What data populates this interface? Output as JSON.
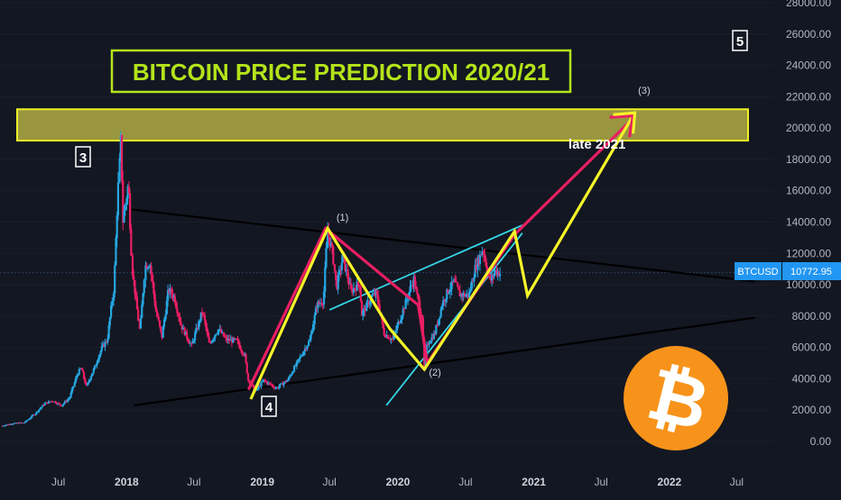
{
  "colors": {
    "background": "#131722",
    "up_candle": "#26a6e0",
    "down_candle": "#e91e63",
    "resistance_zone_fill": "#9a9640",
    "resistance_zone_border": "#eef026",
    "title_border": "#b4e41a",
    "wave_yellow": "#f5f528",
    "wave_pink": "#e91e63",
    "channel_cyan": "#35d8ea",
    "trendline_black": "#000000",
    "price_tag": "#2196f3",
    "bitcoin_orange": "#f7931a",
    "axis_text": "#b2b5be"
  },
  "annotations": {
    "title": "BITCOIN PRICE PREDICTION 2020/21",
    "label_late_2021": "late 2021",
    "wave_label_1": "(1)",
    "wave_label_2": "(2)",
    "wave_label_3": "(3)",
    "box_label_3": "3",
    "box_label_4": "4",
    "box_label_5": "5",
    "bitcoin_logo_icon": "bitcoin-logo-icon"
  },
  "price_tag": {
    "symbol": "BTCUSD",
    "price": "10772.95"
  },
  "chart_data": {
    "type": "candlestick",
    "title": "BITCOIN PRICE PREDICTION 2020/21",
    "symbol": "BTCUSD",
    "last_price": 10772.95,
    "ylim": [
      0,
      28000
    ],
    "y_ticks": [
      "0.00",
      "2000.00",
      "4000.00",
      "6000.00",
      "8000.00",
      "10000.00",
      "12000.00",
      "14000.00",
      "16000.00",
      "18000.00",
      "20000.00",
      "22000.00",
      "24000.00",
      "26000.00",
      "28000.00"
    ],
    "x_ticks": [
      "Jul",
      "2018",
      "Jul",
      "2019",
      "Jul",
      "2020",
      "Jul",
      "2021",
      "Jul",
      "2022",
      "Jul"
    ],
    "x_tick_dates": [
      "2017-07-01",
      "2018-01-01",
      "2018-07-01",
      "2019-01-01",
      "2019-07-01",
      "2020-01-01",
      "2020-07-01",
      "2021-01-01",
      "2021-07-01",
      "2022-01-01",
      "2022-07-01"
    ],
    "xlim": [
      "2017-01-25",
      "2022-10-10"
    ],
    "price_path": [
      [
        "2017-02-01",
        1000
      ],
      [
        "2017-03-01",
        1150
      ],
      [
        "2017-04-01",
        1200
      ],
      [
        "2017-05-01",
        1800
      ],
      [
        "2017-05-25",
        2400
      ],
      [
        "2017-06-15",
        2600
      ],
      [
        "2017-07-10",
        2300
      ],
      [
        "2017-08-01",
        2800
      ],
      [
        "2017-08-20",
        4200
      ],
      [
        "2017-09-01",
        4700
      ],
      [
        "2017-09-15",
        3500
      ],
      [
        "2017-10-10",
        4900
      ],
      [
        "2017-10-25",
        5900
      ],
      [
        "2017-11-10",
        6500
      ],
      [
        "2017-11-28",
        9800
      ],
      [
        "2017-12-08",
        15500
      ],
      [
        "2017-12-17",
        19500
      ],
      [
        "2017-12-22",
        14000
      ],
      [
        "2018-01-06",
        16500
      ],
      [
        "2018-01-16",
        11000
      ],
      [
        "2018-02-06",
        7000
      ],
      [
        "2018-02-20",
        11200
      ],
      [
        "2018-03-05",
        11400
      ],
      [
        "2018-03-20",
        8500
      ],
      [
        "2018-04-06",
        6600
      ],
      [
        "2018-04-24",
        9700
      ],
      [
        "2018-05-10",
        9200
      ],
      [
        "2018-05-28",
        7400
      ],
      [
        "2018-06-25",
        6100
      ],
      [
        "2018-07-24",
        8300
      ],
      [
        "2018-08-12",
        6200
      ],
      [
        "2018-09-05",
        7200
      ],
      [
        "2018-09-25",
        6500
      ],
      [
        "2018-10-25",
        6400
      ],
      [
        "2018-11-15",
        5500
      ],
      [
        "2018-11-25",
        3900
      ],
      [
        "2018-12-15",
        3200
      ],
      [
        "2019-01-05",
        3900
      ],
      [
        "2019-02-08",
        3400
      ],
      [
        "2019-03-10",
        3900
      ],
      [
        "2019-04-05",
        5000
      ],
      [
        "2019-05-10",
        6500
      ],
      [
        "2019-05-28",
        8700
      ],
      [
        "2019-06-15",
        9000
      ],
      [
        "2019-06-26",
        13400
      ],
      [
        "2019-07-10",
        12000
      ],
      [
        "2019-07-20",
        9800
      ],
      [
        "2019-08-06",
        11800
      ],
      [
        "2019-08-28",
        9600
      ],
      [
        "2019-09-20",
        10100
      ],
      [
        "2019-09-26",
        8100
      ],
      [
        "2019-10-25",
        9300
      ],
      [
        "2019-11-05",
        9400
      ],
      [
        "2019-11-25",
        6900
      ],
      [
        "2019-12-18",
        6500
      ],
      [
        "2020-01-10",
        8000
      ],
      [
        "2020-02-13",
        10400
      ],
      [
        "2020-02-28",
        8600
      ],
      [
        "2020-03-08",
        7900
      ],
      [
        "2020-03-12",
        4400
      ],
      [
        "2020-03-20",
        6200
      ],
      [
        "2020-04-10",
        6900
      ],
      [
        "2020-04-30",
        8800
      ],
      [
        "2020-05-15",
        9600
      ],
      [
        "2020-06-01",
        10200
      ],
      [
        "2020-06-15",
        9400
      ],
      [
        "2020-07-10",
        9300
      ],
      [
        "2020-07-27",
        11000
      ],
      [
        "2020-08-17",
        12300
      ],
      [
        "2020-09-05",
        10200
      ],
      [
        "2020-09-20",
        10900
      ],
      [
        "2020-10-05",
        10700
      ]
    ],
    "projection_path": [
      [
        "2020-10-08",
        10773
      ],
      [
        "2020-11-10",
        13400
      ],
      [
        "2020-12-15",
        9300
      ],
      [
        "2021-09-25",
        20800
      ]
    ],
    "resistance_zone": {
      "from": 19200,
      "to": 21200
    },
    "wave_yellow": [
      [
        "2018-12-01",
        2700
      ],
      [
        "2019-06-26",
        13600
      ],
      [
        "2019-12-10",
        7200
      ],
      [
        "2020-03-12",
        4600
      ],
      [
        "2020-11-10",
        13400
      ],
      [
        "2020-12-15",
        9300
      ],
      [
        "2021-09-25",
        20800
      ]
    ],
    "wave_pink": [
      [
        "2018-11-25",
        3300
      ],
      [
        "2019-06-20",
        13600
      ],
      [
        "2020-02-25",
        8700
      ],
      [
        "2020-03-20",
        5000
      ],
      [
        "2020-11-10",
        13200
      ],
      [
        "2021-09-20",
        20500
      ]
    ],
    "trendlines_black": [
      [
        [
          "2018-01-15",
          14800
        ],
        [
          "2022-08-20",
          10200
        ]
      ],
      [
        [
          "2018-01-20",
          2300
        ],
        [
          "2022-08-20",
          7900
        ]
      ]
    ],
    "channel_cyan": [
      [
        [
          "2019-07-01",
          8400
        ],
        [
          "2020-12-01",
          13800
        ]
      ],
      [
        [
          "2019-12-01",
          2300
        ],
        [
          "2020-12-01",
          13300
        ]
      ]
    ],
    "wave_label_points": {
      "(1)": [
        "2019-08-05",
        14100
      ],
      "(2)": [
        "2020-04-10",
        4200
      ],
      "(3)": [
        "2021-10-25",
        22200
      ],
      "late 2021": [
        "2021-06-20",
        18700
      ]
    }
  }
}
